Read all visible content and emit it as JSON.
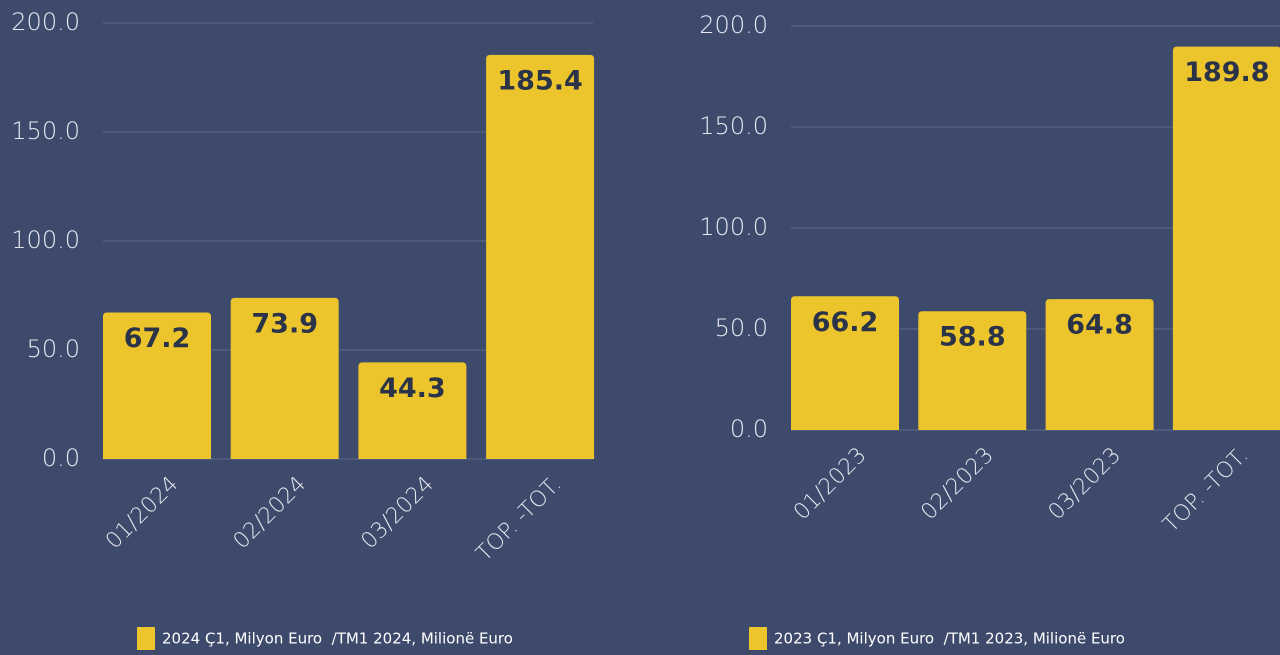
{
  "chart_data": [
    {
      "type": "bar",
      "categories": [
        "01/2024",
        "02/2024",
        "03/2024",
        "TOP. -TOT."
      ],
      "series": [
        {
          "name": "2024 Ç1, Milyon Euro  /TM1 2024, Milionë Euro",
          "color": "#ecc42c",
          "values": [
            67.2,
            73.9,
            44.3,
            185.4
          ]
        }
      ],
      "ylim": [
        0,
        200
      ],
      "yticks": [
        {
          "value": 0,
          "label": "0.0"
        },
        {
          "value": 50,
          "label": "50.0"
        },
        {
          "value": 100,
          "label": "100.0"
        },
        {
          "value": 150,
          "label": "150.0"
        },
        {
          "value": 200,
          "label": "200.0"
        }
      ],
      "grid": true
    },
    {
      "type": "bar",
      "categories": [
        "01/2023",
        "02/2023",
        "03/2023",
        "TOP. -TOT."
      ],
      "series": [
        {
          "name": "2023 Ç1, Milyon Euro  /TM1 2023, Milionë Euro",
          "color": "#ecc42c",
          "values": [
            66.2,
            58.8,
            64.8,
            189.8
          ]
        }
      ],
      "ylim": [
        0,
        200
      ],
      "yticks": [
        {
          "value": 0,
          "label": "0.0"
        },
        {
          "value": 50,
          "label": "50.0"
        },
        {
          "value": 100,
          "label": "100.0"
        },
        {
          "value": 150,
          "label": "150.0"
        },
        {
          "value": 200,
          "label": "200.0"
        }
      ],
      "grid": true
    }
  ]
}
